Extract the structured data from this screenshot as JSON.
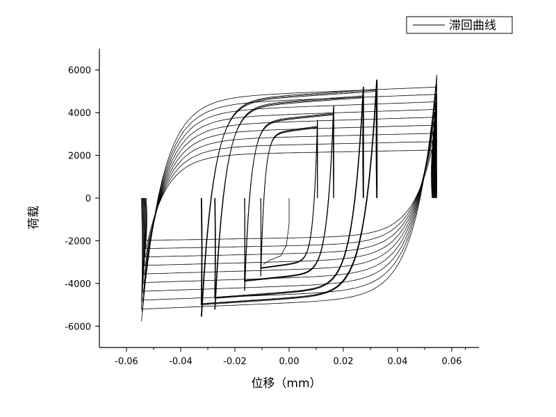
{
  "chart_data": {
    "type": "line",
    "title": "",
    "xlabel": "位移（mm）",
    "ylabel": "荷载",
    "xlim": [
      -0.07,
      0.07
    ],
    "ylim": [
      -7000,
      7000
    ],
    "x_ticks": [
      -0.06,
      -0.04,
      -0.02,
      0.0,
      0.02,
      0.04,
      0.06
    ],
    "x_tick_labels": [
      "-0.06",
      "-0.04",
      "-0.02",
      "0.00",
      "0.02",
      "0.04",
      "0.06"
    ],
    "y_ticks": [
      -6000,
      -4000,
      -2000,
      0,
      2000,
      4000,
      6000
    ],
    "y_tick_labels": [
      "-6000",
      "-4000",
      "-2000",
      "0",
      "2000",
      "4000",
      "6000"
    ],
    "grid": false,
    "legend_position": "top-right",
    "series": [
      {
        "name": "滞回曲线",
        "color": "#000000",
        "loops": [
          {
            "amplitude": 0.0105,
            "peak_load": 3300
          },
          {
            "amplitude": 0.0165,
            "peak_load": 3900
          },
          {
            "amplitude": 0.0275,
            "peak_load": 4700
          },
          {
            "amplitude": 0.0325,
            "peak_load": 5000
          },
          {
            "amplitude": 0.0545,
            "peak_load": 5200
          }
        ]
      }
    ]
  }
}
